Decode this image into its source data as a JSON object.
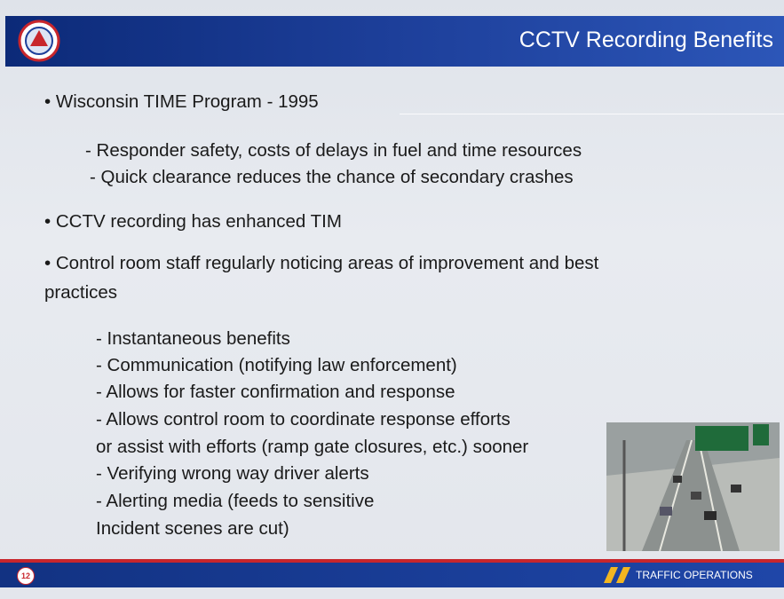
{
  "header": {
    "title": "CCTV Recording Benefits"
  },
  "body": {
    "lines": [
      "• Wisconsin TIME Program - 1995",
      "- Responder safety, costs of delays in fuel and time resources",
      "- Quick clearance reduces the chance of secondary crashes",
      "• CCTV recording has enhanced TIM",
      "• Control room staff regularly noticing areas of improvement and best",
      "practices",
      "- Instantaneous benefits",
      "- Communication (notifying law enforcement)",
      "- Allows for faster confirmation and response",
      "- Allows control room to coordinate response efforts",
      "or assist with efforts (ramp gate closures, etc.) sooner",
      "- Verifying wrong way driver alerts",
      "- Alerting media (feeds to sensitive",
      "Incident scenes are cut)"
    ]
  },
  "footer": {
    "page_number": "12",
    "label": "TRAFFIC OPERATIONS"
  }
}
